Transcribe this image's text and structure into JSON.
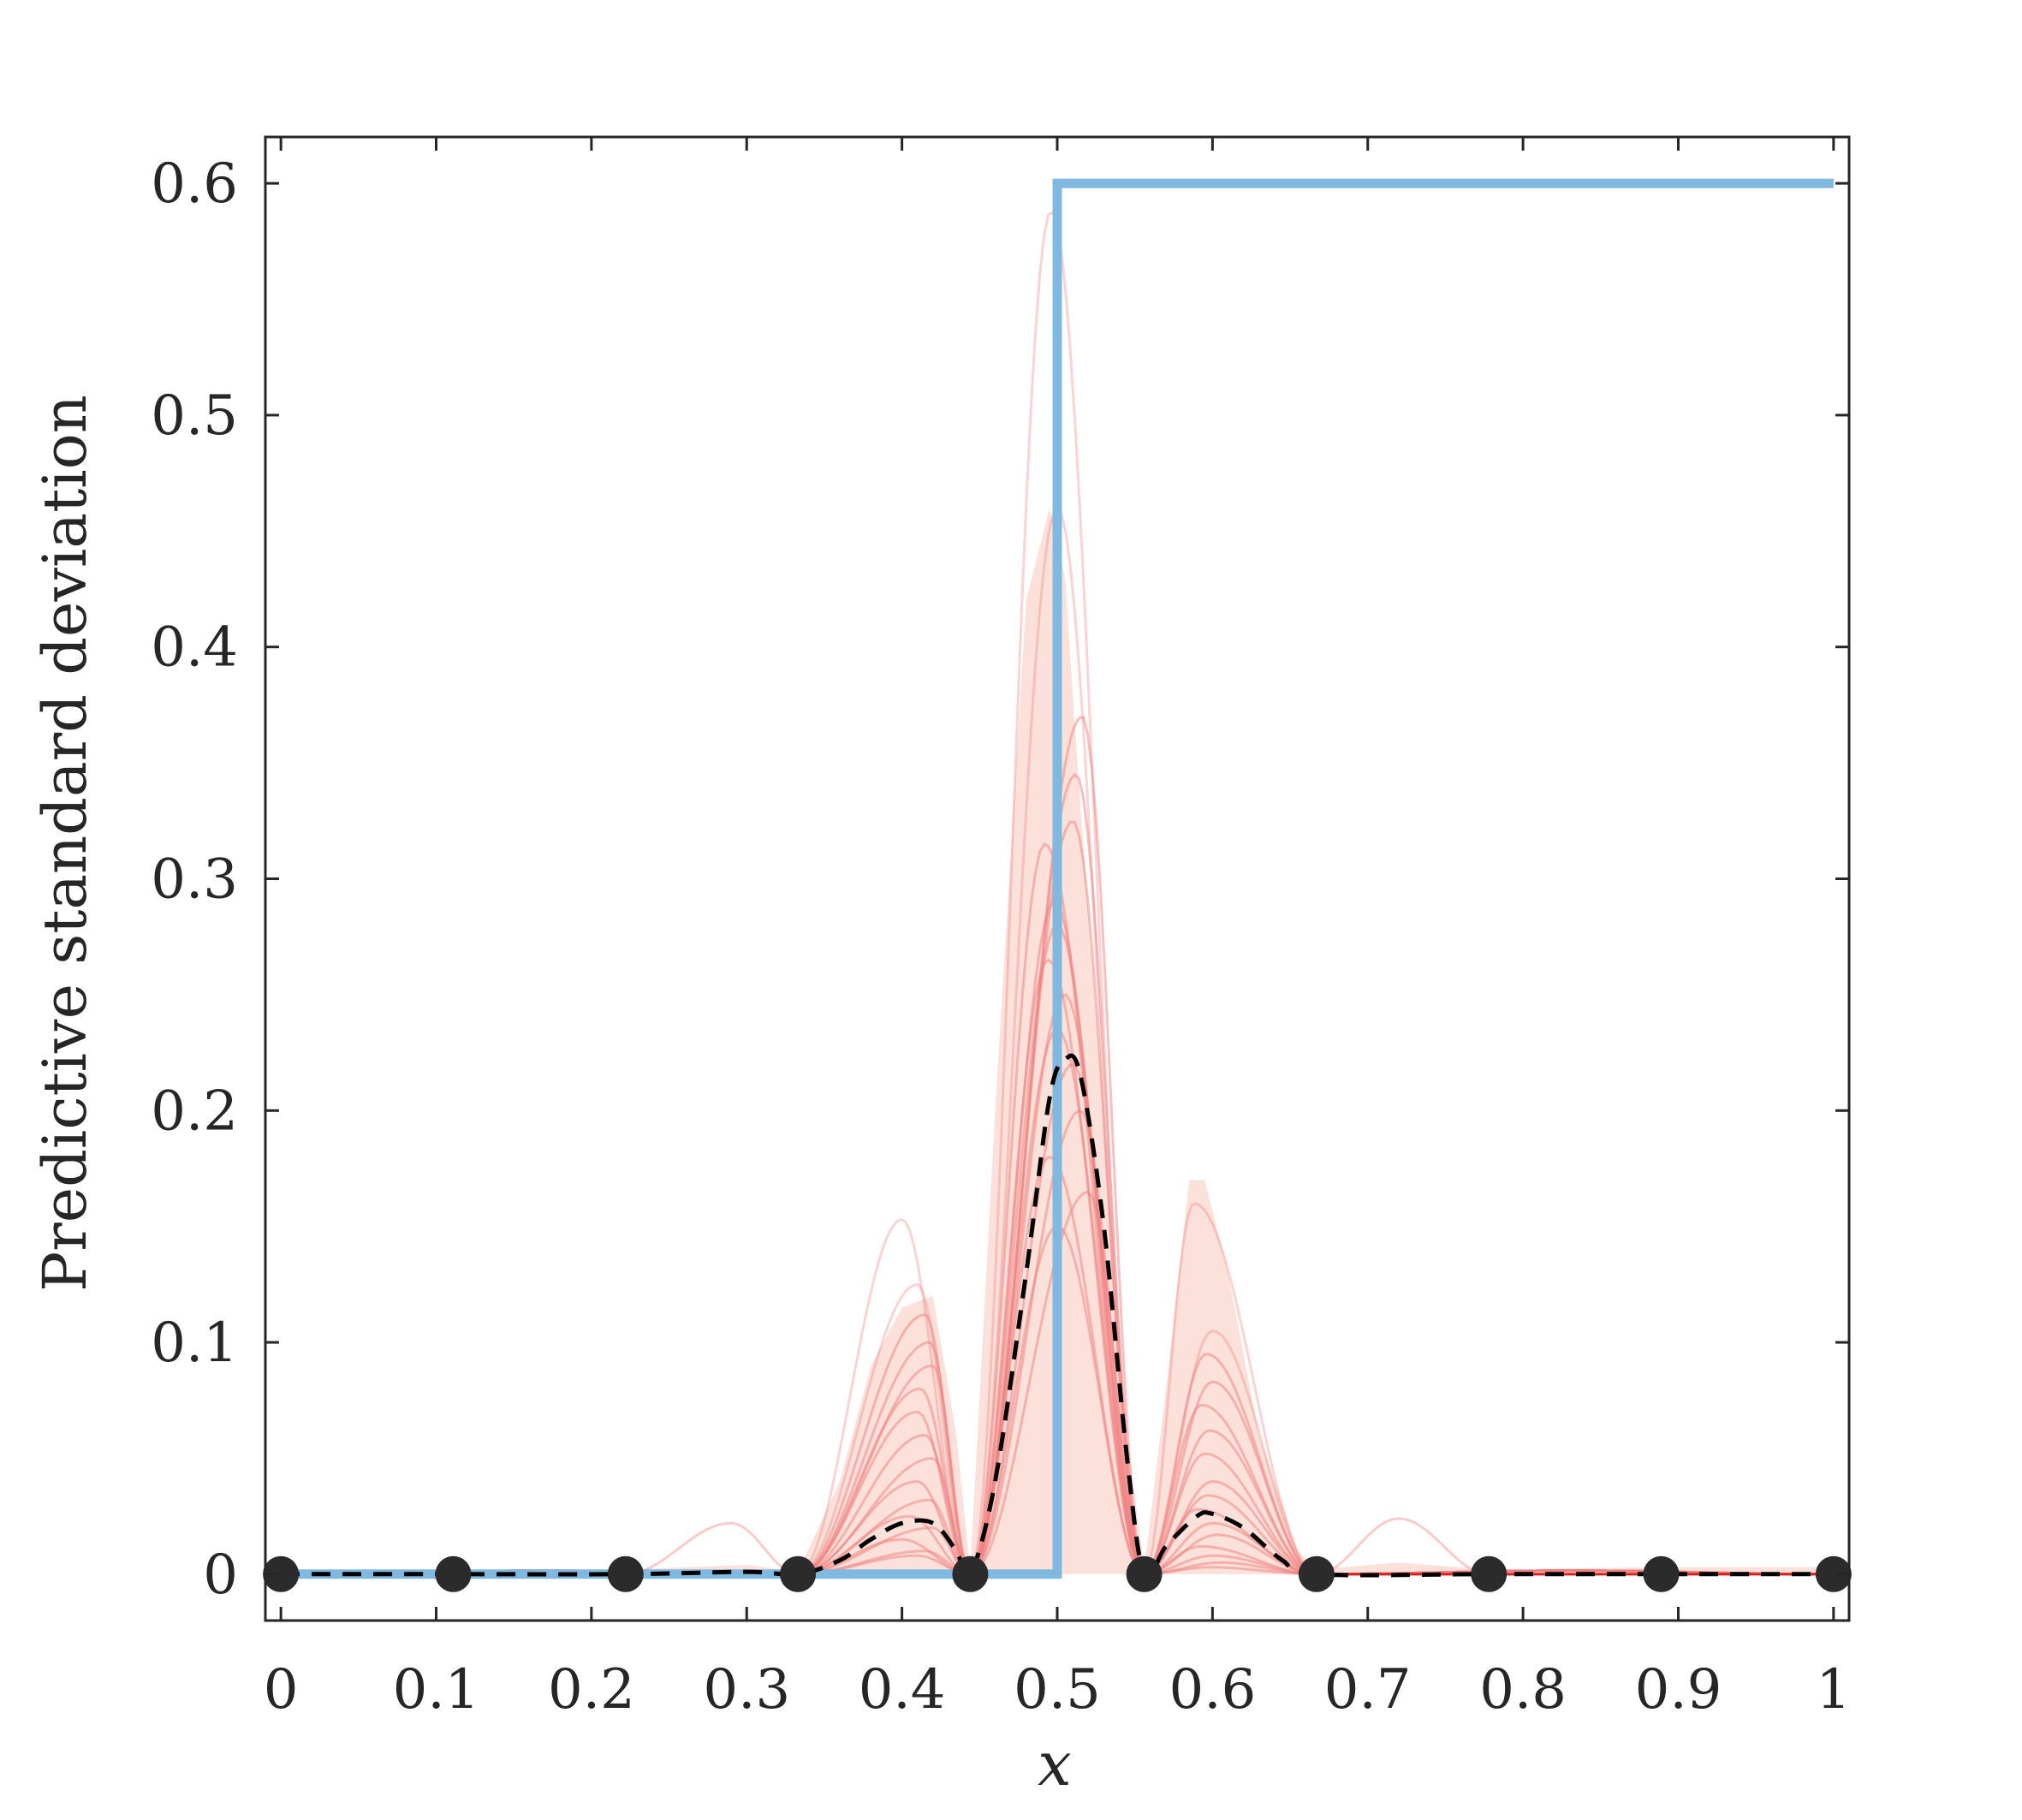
{
  "chart_data": {
    "type": "line",
    "title": "",
    "xlabel": "x",
    "ylabel": "Predictive standard deviation",
    "xlim": [
      -0.01,
      1.01
    ],
    "ylim": [
      -0.02,
      0.62
    ],
    "xticks": [
      0,
      0.1,
      0.2,
      0.3,
      0.4,
      0.5,
      0.6,
      0.7,
      0.8,
      0.9,
      1
    ],
    "xtick_labels": [
      "0",
      "0.1",
      "0.2",
      "0.3",
      "0.4",
      "0.5",
      "0.6",
      "0.7",
      "0.8",
      "0.9",
      "1"
    ],
    "yticks": [
      0,
      0.1,
      0.2,
      0.3,
      0.4,
      0.5,
      0.6
    ],
    "ytick_labels": [
      "0",
      "0.1",
      "0.2",
      "0.3",
      "0.4",
      "0.5",
      "0.6"
    ],
    "grid": false,
    "legend": "none",
    "colors": {
      "step": "#7fb9e0",
      "samples": "#f08080",
      "band": "#fad7cc",
      "mean": "#000000",
      "points": "#2b2b2b",
      "axis": "#262626"
    },
    "step_function": {
      "x": [
        0,
        0.5,
        0.5,
        1
      ],
      "y": [
        0,
        0,
        0.6,
        0.6
      ]
    },
    "observations": {
      "x": [
        0,
        0.111,
        0.222,
        0.333,
        0.444,
        0.556,
        0.667,
        0.778,
        0.889,
        1
      ],
      "y": [
        0,
        0,
        0,
        0,
        0,
        0,
        0,
        0,
        0,
        0
      ]
    },
    "mean_std": {
      "x": [
        0,
        0.111,
        0.222,
        0.3,
        0.333,
        0.36,
        0.38,
        0.4,
        0.42,
        0.435,
        0.444,
        0.46,
        0.48,
        0.495,
        0.505,
        0.515,
        0.53,
        0.545,
        0.556,
        0.57,
        0.59,
        0.6,
        0.62,
        0.645,
        0.667,
        0.778,
        0.889,
        1
      ],
      "y": [
        0,
        0,
        0,
        0.001,
        0,
        0.006,
        0.015,
        0.022,
        0.022,
        0.01,
        0,
        0.04,
        0.13,
        0.205,
        0.222,
        0.215,
        0.15,
        0.05,
        0,
        0.012,
        0.025,
        0.026,
        0.02,
        0.006,
        0,
        0,
        0,
        0
      ]
    },
    "band_upper": {
      "x": [
        0,
        0.111,
        0.222,
        0.3,
        0.333,
        0.36,
        0.38,
        0.4,
        0.42,
        0.435,
        0.444,
        0.46,
        0.48,
        0.495,
        0.505,
        0.515,
        0.53,
        0.545,
        0.556,
        0.57,
        0.585,
        0.595,
        0.61,
        0.63,
        0.655,
        0.667,
        0.72,
        0.778,
        0.889,
        1
      ],
      "y": [
        0.002,
        0.002,
        0.002,
        0.004,
        0.001,
        0.04,
        0.09,
        0.115,
        0.12,
        0.06,
        0.002,
        0.2,
        0.42,
        0.46,
        0.43,
        0.33,
        0.2,
        0.06,
        0.002,
        0.08,
        0.17,
        0.17,
        0.13,
        0.06,
        0.01,
        0.002,
        0.005,
        0.002,
        0.003,
        0.003
      ]
    },
    "sample_curves": [
      {
        "left": 0.153,
        "main": 0.588,
        "right": 0.16,
        "lx": 0.4,
        "mx": 0.496,
        "rx": 0.588
      },
      {
        "left": 0.125,
        "main": 0.46,
        "right": 0.105,
        "lx": 0.41,
        "mx": 0.5,
        "rx": 0.6
      },
      {
        "left": 0.112,
        "main": 0.37,
        "right": 0.095,
        "lx": 0.415,
        "mx": 0.516,
        "rx": 0.596
      },
      {
        "left": 0.1,
        "main": 0.345,
        "right": 0.083,
        "lx": 0.418,
        "mx": 0.512,
        "rx": 0.6
      },
      {
        "left": 0.09,
        "main": 0.325,
        "right": 0.073,
        "lx": 0.42,
        "mx": 0.51,
        "rx": 0.593
      },
      {
        "left": 0.08,
        "main": 0.315,
        "right": 0.062,
        "lx": 0.412,
        "mx": 0.492,
        "rx": 0.598
      },
      {
        "left": 0.07,
        "main": 0.29,
        "right": 0.052,
        "lx": 0.41,
        "mx": 0.498,
        "rx": 0.595
      },
      {
        "left": 0.06,
        "main": 0.28,
        "right": 0.04,
        "lx": 0.415,
        "mx": 0.5,
        "rx": 0.6
      },
      {
        "left": 0.05,
        "main": 0.265,
        "right": 0.034,
        "lx": 0.42,
        "mx": 0.494,
        "rx": 0.597
      },
      {
        "left": 0.04,
        "main": 0.25,
        "right": 0.028,
        "lx": 0.41,
        "mx": 0.505,
        "rx": 0.59
      },
      {
        "left": 0.032,
        "main": 0.235,
        "right": 0.022,
        "lx": 0.418,
        "mx": 0.5,
        "rx": 0.6
      },
      {
        "left": 0.025,
        "main": 0.22,
        "right": 0.017,
        "lx": 0.405,
        "mx": 0.51,
        "rx": 0.603
      },
      {
        "left": 0.02,
        "main": 0.2,
        "right": 0.012,
        "lx": 0.42,
        "mx": 0.515,
        "rx": 0.592
      },
      {
        "left": 0.015,
        "main": 0.18,
        "right": 0.008,
        "lx": 0.4,
        "mx": 0.495,
        "rx": 0.6
      },
      {
        "left": 0.01,
        "main": 0.165,
        "right": 0.005,
        "lx": 0.415,
        "mx": 0.52,
        "rx": 0.605
      },
      {
        "left": 0.008,
        "main": 0.15,
        "right": 0.003,
        "lx": 0.41,
        "mx": 0.5,
        "rx": 0.598
      }
    ],
    "side_bumps": [
      {
        "x": 0.29,
        "y": 0.022
      },
      {
        "x": 0.72,
        "y": 0.024
      }
    ]
  }
}
